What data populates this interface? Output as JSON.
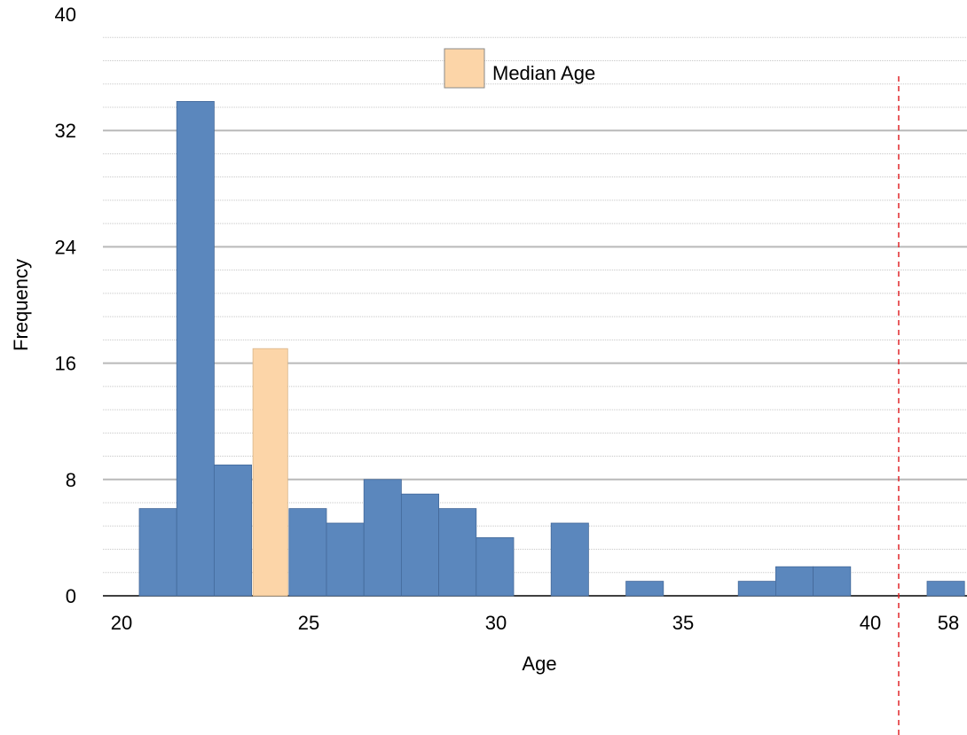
{
  "chart_data": {
    "type": "bar",
    "title": "",
    "xlabel": "Age",
    "ylabel": "Frequency",
    "ylim": [
      0,
      40
    ],
    "yticks": [
      0,
      8,
      16,
      24,
      32,
      40
    ],
    "xticks": [
      {
        "value": 20,
        "label": "20"
      },
      {
        "value": 25,
        "label": "25"
      },
      {
        "value": 30,
        "label": "30"
      },
      {
        "value": 35,
        "label": "35"
      },
      {
        "value": 40,
        "label": "40"
      },
      {
        "value": 58,
        "label": "58"
      }
    ],
    "axis_break": {
      "after": 40,
      "before": 58,
      "style": "dashed-red-line"
    },
    "grid": true,
    "legend": {
      "label": "Median Age",
      "position": "top-center",
      "color": "#FCD5A8"
    },
    "bars": [
      {
        "age": 21,
        "value": 6
      },
      {
        "age": 22,
        "value": 34
      },
      {
        "age": 23,
        "value": 9
      },
      {
        "age": 24,
        "value": 17,
        "highlight": true
      },
      {
        "age": 25,
        "value": 6
      },
      {
        "age": 26,
        "value": 5
      },
      {
        "age": 27,
        "value": 8
      },
      {
        "age": 28,
        "value": 7
      },
      {
        "age": 29,
        "value": 6
      },
      {
        "age": 30,
        "value": 4
      },
      {
        "age": 31,
        "value": 0
      },
      {
        "age": 32,
        "value": 5
      },
      {
        "age": 33,
        "value": 0
      },
      {
        "age": 34,
        "value": 1
      },
      {
        "age": 35,
        "value": 0
      },
      {
        "age": 36,
        "value": 0
      },
      {
        "age": 37,
        "value": 1
      },
      {
        "age": 38,
        "value": 2
      },
      {
        "age": 39,
        "value": 2
      },
      {
        "age": 40,
        "value": 0
      },
      {
        "age": 58,
        "value": 1
      }
    ],
    "colors": {
      "bar": "#5B87BD",
      "highlight": "#FCD5A8",
      "break_line": "#E0262A",
      "major_grid": "#B9B9B9",
      "minor_grid": "#C8C8C8"
    }
  }
}
